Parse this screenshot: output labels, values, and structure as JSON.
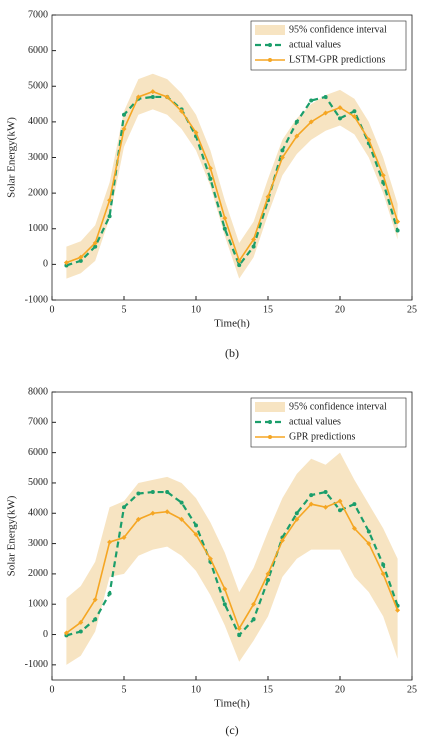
{
  "chart_data": [
    {
      "type": "line",
      "caption": "(b)",
      "x_label": "Time(h)",
      "y_label": "Solar Energy(kW)",
      "xlim": [
        0,
        25
      ],
      "xticks": [
        0,
        5,
        10,
        15,
        20,
        25
      ],
      "ylim": [
        -1000,
        7000
      ],
      "yticks": [
        -1000,
        0,
        1000,
        2000,
        3000,
        4000,
        5000,
        6000,
        7000
      ],
      "legend": "upper right",
      "x": [
        1,
        2,
        3,
        4,
        5,
        6,
        7,
        8,
        9,
        10,
        11,
        12,
        13,
        14,
        15,
        16,
        17,
        18,
        19,
        20,
        21,
        22,
        23,
        24
      ],
      "series": [
        {
          "name": "95% confidence interval",
          "color": "#f7e4c2",
          "upper": [
            500,
            650,
            1100,
            2300,
            4300,
            5200,
            5350,
            5200,
            4800,
            4200,
            3200,
            1800,
            600,
            1200,
            2400,
            3500,
            4100,
            4500,
            4750,
            4900,
            4650,
            4000,
            3000,
            1700
          ],
          "lower": [
            -400,
            -250,
            100,
            1300,
            3300,
            4200,
            4350,
            4200,
            3800,
            3200,
            2200,
            800,
            -400,
            200,
            1400,
            2500,
            3100,
            3500,
            3750,
            3900,
            3650,
            3000,
            2000,
            700
          ]
        },
        {
          "name": "actual values",
          "color": "#1b9e6b",
          "values": [
            -30,
            100,
            500,
            1350,
            4200,
            4650,
            4700,
            4700,
            4350,
            3600,
            2400,
            1000,
            -20,
            500,
            1800,
            3200,
            4000,
            4600,
            4700,
            4100,
            4300,
            3400,
            2300,
            950
          ]
        },
        {
          "name": "LSTM-GPR predictions",
          "color": "#f5a623",
          "values": [
            50,
            200,
            600,
            1800,
            3800,
            4700,
            4850,
            4700,
            4300,
            3700,
            2700,
            1300,
            100,
            700,
            1900,
            3000,
            3600,
            4000,
            4250,
            4400,
            4150,
            3500,
            2500,
            1200
          ]
        }
      ]
    },
    {
      "type": "line",
      "caption": "(c)",
      "x_label": "Time(h)",
      "y_label": "Solar Energy(kW)",
      "xlim": [
        0,
        25
      ],
      "xticks": [
        0,
        5,
        10,
        15,
        20,
        25
      ],
      "ylim": [
        -1500,
        8000
      ],
      "yticks": [
        -1000,
        0,
        1000,
        2000,
        3000,
        4000,
        5000,
        6000,
        7000,
        8000
      ],
      "legend": "upper right",
      "x": [
        1,
        2,
        3,
        4,
        5,
        6,
        7,
        8,
        9,
        10,
        11,
        12,
        13,
        14,
        15,
        16,
        17,
        18,
        19,
        20,
        21,
        22,
        23,
        24
      ],
      "series": [
        {
          "name": "95% confidence interval",
          "color": "#f7e4c2",
          "upper": [
            1200,
            1600,
            2400,
            4200,
            4400,
            5000,
            5100,
            5200,
            5000,
            4500,
            3700,
            2700,
            1400,
            2200,
            3400,
            4500,
            5300,
            5800,
            5600,
            6000,
            5100,
            4300,
            3500,
            2500
          ],
          "lower": [
            -1000,
            -700,
            100,
            1900,
            2000,
            2600,
            2800,
            2900,
            2600,
            2100,
            1300,
            300,
            -900,
            -200,
            600,
            1900,
            2500,
            2800,
            2800,
            2800,
            1900,
            1400,
            600,
            -800
          ]
        },
        {
          "name": "actual values",
          "color": "#1b9e6b",
          "values": [
            -30,
            100,
            500,
            1350,
            4200,
            4650,
            4700,
            4700,
            4350,
            3600,
            2400,
            1000,
            -20,
            500,
            1800,
            3200,
            4000,
            4600,
            4700,
            4100,
            4300,
            3400,
            2300,
            950
          ]
        },
        {
          "name": "GPR predictions",
          "color": "#f5a623",
          "values": [
            50,
            400,
            1150,
            3050,
            3200,
            3800,
            4000,
            4050,
            3800,
            3300,
            2500,
            1500,
            200,
            1000,
            2000,
            3100,
            3800,
            4300,
            4200,
            4400,
            3500,
            3000,
            2000,
            800
          ]
        }
      ]
    }
  ]
}
